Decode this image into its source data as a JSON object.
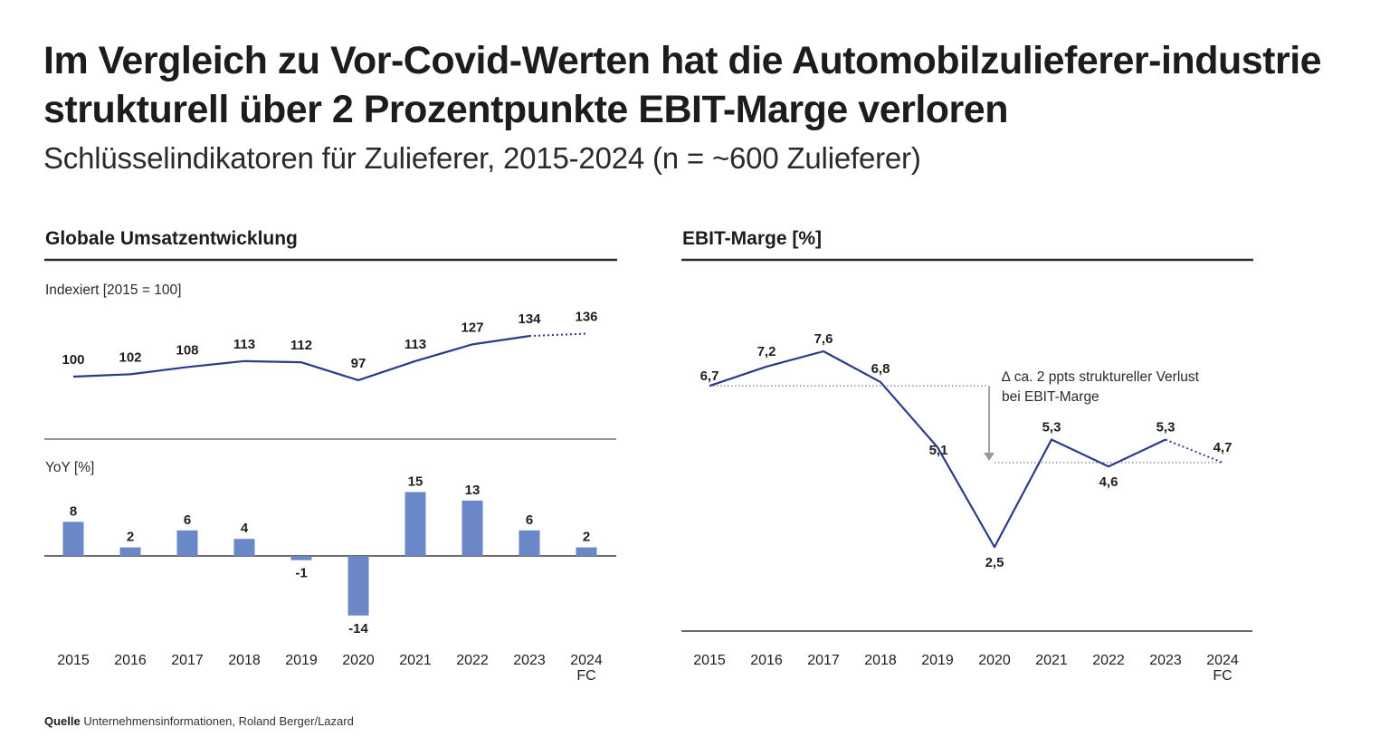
{
  "header": {
    "title": "Im Vergleich zu Vor-Covid-Werten hat die Automobilzulieferer-industrie strukturell über 2 Prozentpunkte EBIT-Marge verloren",
    "subtitle": "Schlüsselindikatoren für Zulieferer, 2015-2024 (n = ~600 Zulieferer)"
  },
  "footer": {
    "source_label": "Quelle",
    "source_text": "Unternehmensinformationen, Roland Berger/Lazard"
  },
  "colors": {
    "line": "#2b3a8c",
    "bar": "#6a87c8",
    "axis": "#3a3a3a",
    "reference": "#9a9a9a",
    "text": "#1e1e1e"
  },
  "chart_data": [
    {
      "type": "line",
      "panel_title": "Globale Umsatzentwicklung",
      "title": "Indexiert [2015 = 100]",
      "categories": [
        "2015",
        "2016",
        "2017",
        "2018",
        "2019",
        "2020",
        "2021",
        "2022",
        "2023",
        "2024"
      ],
      "category_sublabels": [
        "",
        "",
        "",
        "",
        "",
        "",
        "",
        "",
        "",
        "FC"
      ],
      "values": [
        100,
        102,
        108,
        113,
        112,
        97,
        113,
        127,
        134,
        136
      ],
      "data_labels": [
        "100",
        "102",
        "108",
        "113",
        "112",
        "97",
        "113",
        "127",
        "134",
        "136"
      ],
      "forecast_from_index": 8,
      "xlabel": "",
      "ylabel": "Indexiert [2015 = 100]",
      "grid": false
    },
    {
      "type": "bar",
      "title": "YoY [%]",
      "categories": [
        "2015",
        "2016",
        "2017",
        "2018",
        "2019",
        "2020",
        "2021",
        "2022",
        "2023",
        "2024"
      ],
      "category_sublabels": [
        "",
        "",
        "",
        "",
        "",
        "",
        "",
        "",
        "",
        "FC"
      ],
      "values": [
        8,
        2,
        6,
        4,
        -1,
        -14,
        15,
        13,
        6,
        2
      ],
      "data_labels": [
        "8",
        "2",
        "6",
        "4",
        "-1",
        "-14",
        "15",
        "13",
        "6",
        "2"
      ],
      "xlabel": "",
      "ylabel": "YoY [%]",
      "grid": false
    },
    {
      "type": "line",
      "panel_title": "EBIT-Marge [%]",
      "title": "EBIT-Marge [%]",
      "categories": [
        "2015",
        "2016",
        "2017",
        "2018",
        "2019",
        "2020",
        "2021",
        "2022",
        "2023",
        "2024"
      ],
      "category_sublabels": [
        "",
        "",
        "",
        "",
        "",
        "",
        "",
        "",
        "",
        "FC"
      ],
      "values": [
        6.7,
        7.2,
        7.6,
        6.8,
        5.1,
        2.5,
        5.3,
        4.6,
        5.3,
        4.7
      ],
      "data_labels": [
        "6,7",
        "7,2",
        "7,6",
        "6,8",
        "5,1",
        "2,5",
        "5,3",
        "4,6",
        "5,3",
        "4,7"
      ],
      "forecast_from_index": 8,
      "reference_lines": [
        {
          "value": 6.7,
          "from": "2015",
          "to": "2020",
          "style": "dotted"
        },
        {
          "value": 4.7,
          "from": "2020",
          "to": "2024",
          "style": "dotted"
        }
      ],
      "annotation": {
        "line1": "∆ ca. 2 ppts struktureller Verlust",
        "line2": "bei EBIT-Marge",
        "arrow_from": 6.7,
        "arrow_to": 4.7
      },
      "xlabel": "",
      "ylabel": "EBIT-Marge [%]",
      "grid": false
    }
  ]
}
